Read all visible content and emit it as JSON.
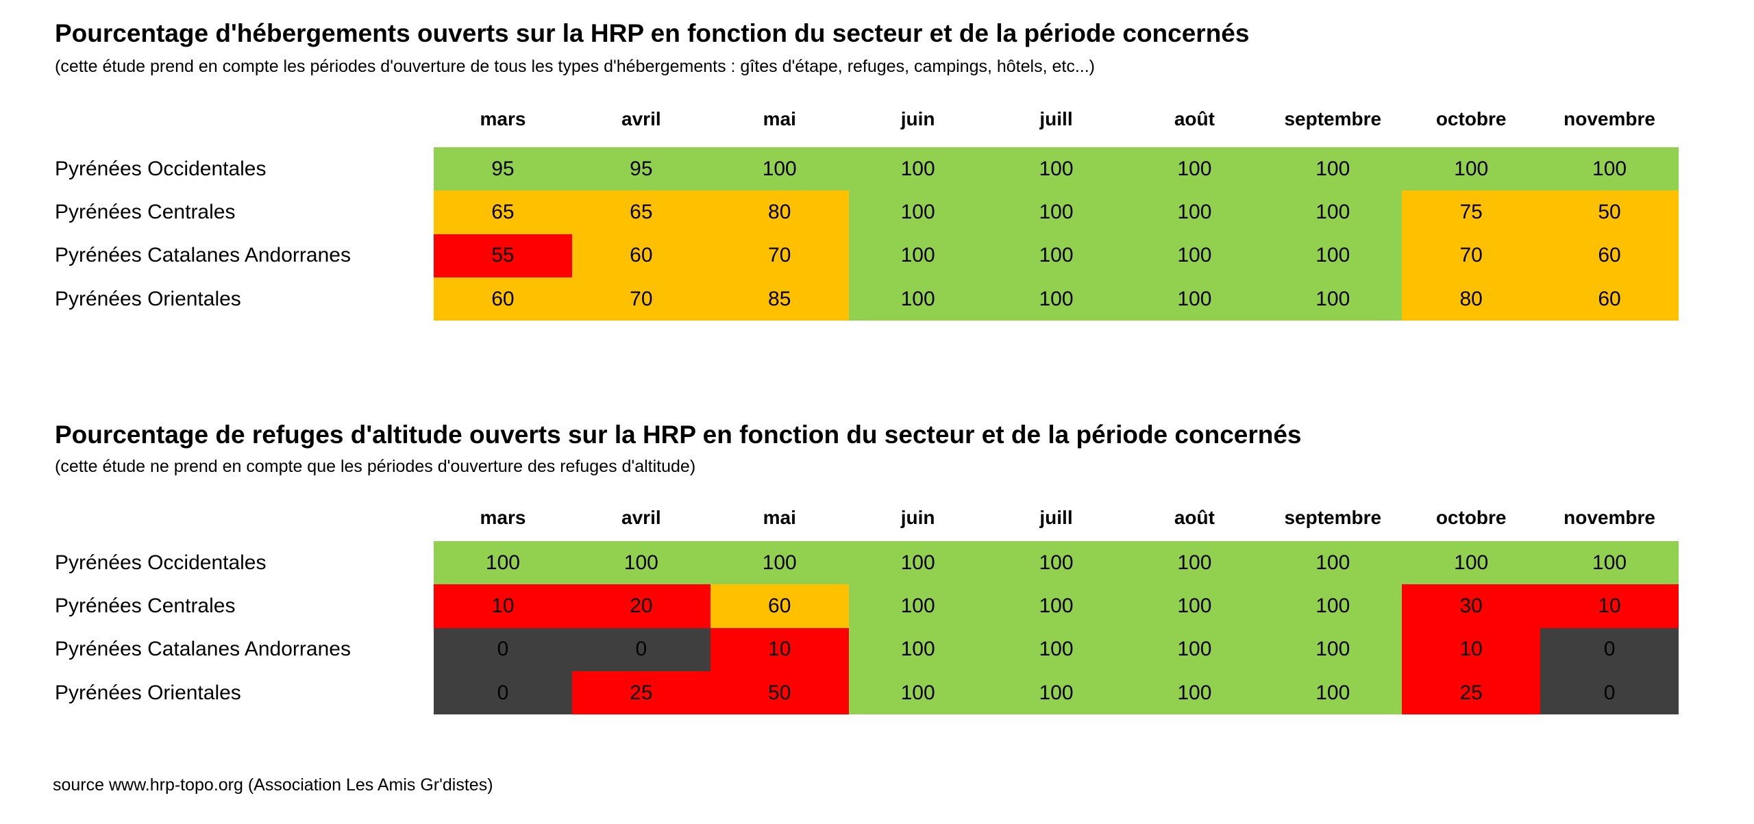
{
  "palette": {
    "green": "#92D050",
    "orange": "#FFC000",
    "red": "#FF0000",
    "dark": "#3F3F3F"
  },
  "months": [
    "mars",
    "avril",
    "mai",
    "juin",
    "juill",
    "août",
    "septembre",
    "octobre",
    "novembre"
  ],
  "chart_data": [
    {
      "type": "heatmap",
      "title": "Pourcentage d'hébergements ouverts sur la HRP en fonction du secteur et de la période concernés",
      "subtitle": "(cette étude prend en compte les périodes d'ouverture de tous les types d'hébergements : gîtes d'étape, refuges, campings, hôtels, etc...)",
      "x_categories": [
        "mars",
        "avril",
        "mai",
        "juin",
        "juill",
        "août",
        "septembre",
        "octobre",
        "novembre"
      ],
      "rows": [
        {
          "label": "Pyrénées Occidentales",
          "values": [
            95,
            95,
            100,
            100,
            100,
            100,
            100,
            100,
            100
          ],
          "colors": [
            "green",
            "green",
            "green",
            "green",
            "green",
            "green",
            "green",
            "green",
            "green"
          ]
        },
        {
          "label": "Pyrénées Centrales",
          "values": [
            65,
            65,
            80,
            100,
            100,
            100,
            100,
            75,
            50
          ],
          "colors": [
            "orange",
            "orange",
            "orange",
            "green",
            "green",
            "green",
            "green",
            "orange",
            "orange"
          ]
        },
        {
          "label": "Pyrénées Catalanes Andorranes",
          "values": [
            55,
            60,
            70,
            100,
            100,
            100,
            100,
            70,
            60
          ],
          "colors": [
            "red",
            "orange",
            "orange",
            "green",
            "green",
            "green",
            "green",
            "orange",
            "orange"
          ]
        },
        {
          "label": "Pyrénées Orientales",
          "values": [
            60,
            70,
            85,
            100,
            100,
            100,
            100,
            80,
            60
          ],
          "colors": [
            "orange",
            "orange",
            "orange",
            "green",
            "green",
            "green",
            "green",
            "orange",
            "orange"
          ]
        }
      ]
    },
    {
      "type": "heatmap",
      "title": "Pourcentage de refuges d'altitude ouverts sur la HRP en fonction du secteur et de la période concernés",
      "subtitle": "(cette étude ne prend en compte que les périodes d'ouverture des refuges d'altitude)",
      "x_categories": [
        "mars",
        "avril",
        "mai",
        "juin",
        "juill",
        "août",
        "septembre",
        "octobre",
        "novembre"
      ],
      "rows": [
        {
          "label": "Pyrénées Occidentales",
          "values": [
            100,
            100,
            100,
            100,
            100,
            100,
            100,
            100,
            100
          ],
          "colors": [
            "green",
            "green",
            "green",
            "green",
            "green",
            "green",
            "green",
            "green",
            "green"
          ]
        },
        {
          "label": "Pyrénées Centrales",
          "values": [
            10,
            20,
            60,
            100,
            100,
            100,
            100,
            30,
            10
          ],
          "colors": [
            "red",
            "red",
            "orange",
            "green",
            "green",
            "green",
            "green",
            "red",
            "red"
          ]
        },
        {
          "label": "Pyrénées Catalanes Andorranes",
          "values": [
            0,
            0,
            10,
            100,
            100,
            100,
            100,
            10,
            0
          ],
          "colors": [
            "dark",
            "dark",
            "red",
            "green",
            "green",
            "green",
            "green",
            "red",
            "dark"
          ]
        },
        {
          "label": "Pyrénées Orientales",
          "values": [
            0,
            25,
            50,
            100,
            100,
            100,
            100,
            25,
            0
          ],
          "colors": [
            "dark",
            "red",
            "red",
            "green",
            "green",
            "green",
            "green",
            "red",
            "dark"
          ]
        }
      ]
    }
  ],
  "source_note": "source www.hrp-topo.org (Association Les Amis Gr'distes)"
}
